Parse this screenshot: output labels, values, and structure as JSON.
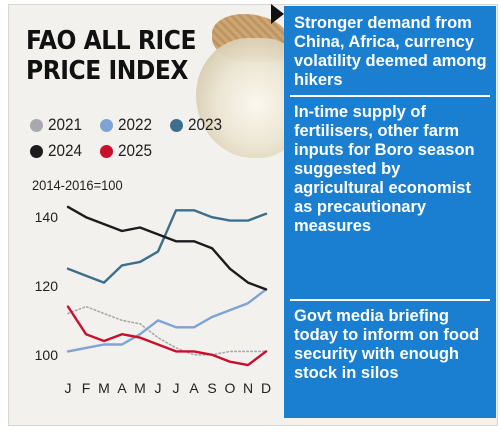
{
  "title_lines": [
    "FAO ALL RICE",
    "PRICE INDEX"
  ],
  "legend": [
    {
      "label": "2021",
      "color": "#a7a9ad"
    },
    {
      "label": "2022",
      "color": "#7fa3d4"
    },
    {
      "label": "2023",
      "color": "#3d6f8c"
    },
    {
      "label": "2024",
      "color": "#1c1c1c"
    },
    {
      "label": "2025",
      "color": "#c8102e"
    }
  ],
  "unit_note": "2014-2016=100",
  "sidebar_color": "#1a7fd1",
  "notes": [
    "Stronger demand from China, Africa, currency volatility deemed among hikers",
    "In-time supply of fertilisers,  other farm inputs for Boro season suggested by agricultural economist as precautionary measures",
    "Govt media briefing today to inform on food security with enough stock in silos"
  ],
  "chart_data": {
    "type": "line",
    "title": "FAO ALL RICE PRICE INDEX",
    "ylabel": "2014-2016=100",
    "x": [
      "J",
      "F",
      "M",
      "A",
      "M",
      "J",
      "J",
      "A",
      "S",
      "O",
      "N",
      "D"
    ],
    "y_ticks": [
      100,
      120,
      140
    ],
    "ylim": [
      95,
      145
    ],
    "grid": false,
    "series": [
      {
        "name": "2021",
        "color": "#a7a9ad",
        "style": "dotted",
        "values": [
          112,
          114,
          112,
          110,
          109,
          105,
          102,
          100,
          100,
          101,
          101,
          101
        ]
      },
      {
        "name": "2022",
        "color": "#7fa3d4",
        "style": "solid",
        "values": [
          101,
          102,
          103,
          103,
          106,
          110,
          108,
          108,
          111,
          113,
          115,
          119
        ]
      },
      {
        "name": "2023",
        "color": "#3d6f8c",
        "style": "solid",
        "values": [
          125,
          123,
          121,
          126,
          127,
          130,
          142,
          142,
          140,
          139,
          139,
          141
        ]
      },
      {
        "name": "2024",
        "color": "#1c1c1c",
        "style": "solid",
        "values": [
          143,
          140,
          138,
          136,
          137,
          135,
          133,
          133,
          131,
          125,
          121,
          119
        ]
      },
      {
        "name": "2025",
        "color": "#c8102e",
        "style": "solid",
        "values": [
          114,
          106,
          104,
          106,
          105,
          103,
          101,
          101,
          100,
          98,
          97,
          101
        ]
      }
    ]
  }
}
